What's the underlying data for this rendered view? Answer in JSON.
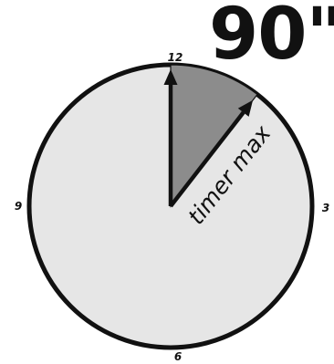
{
  "header": {
    "duration": "90\""
  },
  "dial": {
    "numerals": {
      "twelve": "12",
      "three": "3",
      "six": "6",
      "nine": "9"
    },
    "sector_label": "timer max",
    "sector_fraction": 0.105,
    "colors": {
      "face": "#e6e6e6",
      "sector": "#8c8c8c",
      "rim": "#111111"
    }
  }
}
